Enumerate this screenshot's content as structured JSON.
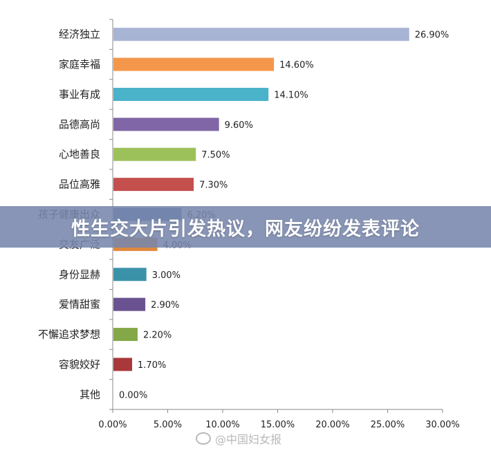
{
  "chart_data": {
    "type": "bar",
    "orientation": "horizontal",
    "categories": [
      "经济独立",
      "家庭幸福",
      "事业有成",
      "品德高尚",
      "心地善良",
      "品位高雅",
      "孩子健康出众",
      "交友广泛",
      "身份显赫",
      "爱情甜蜜",
      "不懈追求梦想",
      "容貌姣好",
      "其他"
    ],
    "values": [
      26.9,
      14.6,
      14.1,
      9.6,
      7.5,
      7.3,
      6.2,
      4.0,
      3.0,
      2.9,
      2.2,
      1.7,
      0.0
    ],
    "value_labels": [
      "26.90%",
      "14.60%",
      "14.10%",
      "9.60%",
      "7.50%",
      "7.30%",
      "6.20%",
      "4.00%",
      "3.00%",
      "2.90%",
      "2.20%",
      "1.70%",
      "0.00%"
    ],
    "colors": [
      "#a8b4d4",
      "#f4974a",
      "#4ab2c9",
      "#8066a6",
      "#9dc15a",
      "#c4504e",
      "#5878b4",
      "#e0883c",
      "#3a92a8",
      "#6a5290",
      "#84a848",
      "#a8383a",
      "#a8b4d4"
    ],
    "xlim": [
      0,
      30
    ],
    "xticks": [
      0,
      5,
      10,
      15,
      20,
      25,
      30
    ],
    "xtick_labels": [
      "0.00%",
      "5.00%",
      "10.00%",
      "15.00%",
      "20.00%",
      "25.00%",
      "30.00%"
    ],
    "grid": false,
    "legend": "none"
  },
  "banner": {
    "text": "性生交大片引发热议，网友纷纷发表评论"
  },
  "watermark": {
    "text": "@中国妇女报"
  }
}
